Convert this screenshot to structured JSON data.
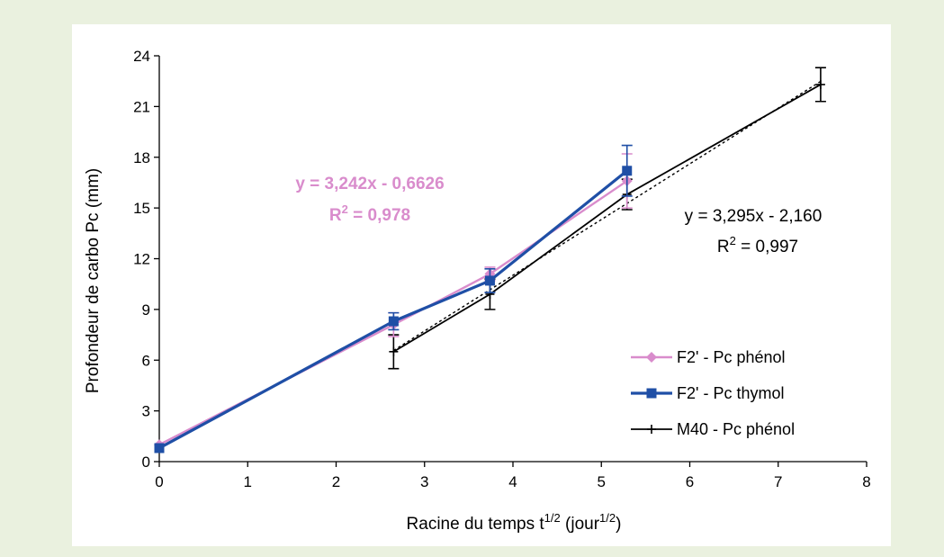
{
  "chart_data": {
    "type": "line",
    "xlabel": "Racine du temps t",
    "xlabel_sup": "1/2",
    "xlabel_tail": " (jour",
    "xlabel_tail_sup": "1/2",
    "xlabel_end": ")",
    "ylabel": "Profondeur de carbo Pc (mm)",
    "xlim": [
      0,
      8
    ],
    "ylim": [
      0,
      24
    ],
    "xticks": [
      0,
      1,
      2,
      3,
      4,
      5,
      6,
      7,
      8
    ],
    "yticks": [
      0,
      3,
      6,
      9,
      12,
      15,
      18,
      21,
      24
    ],
    "grid": false,
    "legend_position": "bottom-right",
    "series": [
      {
        "name": "F2' - Pc phénol",
        "color": "#d98ccc",
        "marker": "diamond",
        "x": [
          0,
          2.65,
          3.74,
          5.29
        ],
        "y": [
          1.0,
          8.1,
          11.1,
          16.6
        ],
        "err": [
          0,
          0.7,
          0.4,
          1.6
        ]
      },
      {
        "name": "F2' - Pc thymol",
        "color": "#1f4fa6",
        "marker": "square",
        "x": [
          0,
          2.65,
          3.74,
          5.29
        ],
        "y": [
          0.8,
          8.3,
          10.7,
          17.2
        ],
        "err": [
          0,
          0.5,
          0.7,
          1.5
        ]
      },
      {
        "name": "M40 - Pc phénol",
        "color": "#000000",
        "marker": "plus",
        "x": [
          2.65,
          3.74,
          5.29,
          7.48
        ],
        "y": [
          6.5,
          9.9,
          15.8,
          22.3
        ],
        "err": [
          1.0,
          0.9,
          0.9,
          1.0
        ]
      }
    ],
    "trendline": {
      "slope": 3.295,
      "intercept": -2.16,
      "x_range": [
        2.65,
        7.48
      ],
      "style": "dotted"
    },
    "annotations": [
      {
        "line1": "y = 3,242x - 0,6626",
        "line2_pre": "R",
        "line2_sup": "2",
        "line2_post": " = 0,978",
        "color": "#d98ccc",
        "bold": true
      },
      {
        "line1": "y = 3,295x - 2,160",
        "line2_pre": "R",
        "line2_sup": "2",
        "line2_post": " = 0,997",
        "color": "#000000",
        "bold": false
      }
    ]
  }
}
